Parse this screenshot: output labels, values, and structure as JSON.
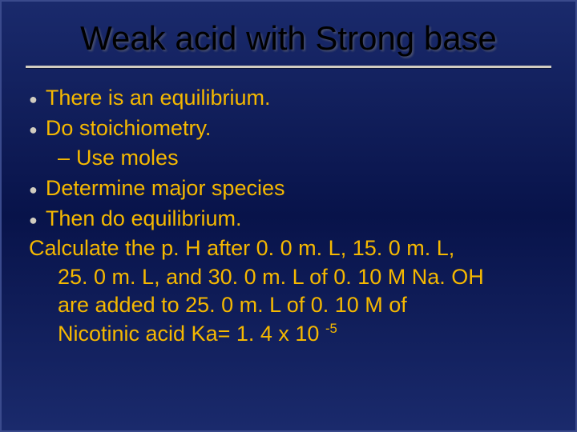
{
  "slide": {
    "title": "Weak acid with Strong base",
    "background_gradient": [
      "#1a2a6c",
      "#08134a",
      "#1a2a6c"
    ],
    "title_color": "#000000",
    "body_color": "#f5b800",
    "bullet_color": "#d0ccc0",
    "divider_color": "#d0ccc0",
    "title_fontsize": 42,
    "body_fontsize": 27,
    "bullets": [
      {
        "text": "There is an equilibrium."
      },
      {
        "text": "Do stoichiometry.",
        "sub": [
          "Use moles"
        ]
      },
      {
        "text": "Determine major species"
      },
      {
        "text": "Then do equilibrium."
      }
    ],
    "paragraph": {
      "line1": "Calculate the p. H after 0. 0 m. L, 15. 0 m. L,",
      "line2": "25. 0 m. L, and 30. 0 m. L of 0. 10 M Na. OH",
      "line3": "are added to 25. 0 m. L of 0. 10 M of",
      "line4_prefix": "Nicotinic acid Ka= 1. 4 x 10 ",
      "line4_exp": "-5"
    }
  }
}
